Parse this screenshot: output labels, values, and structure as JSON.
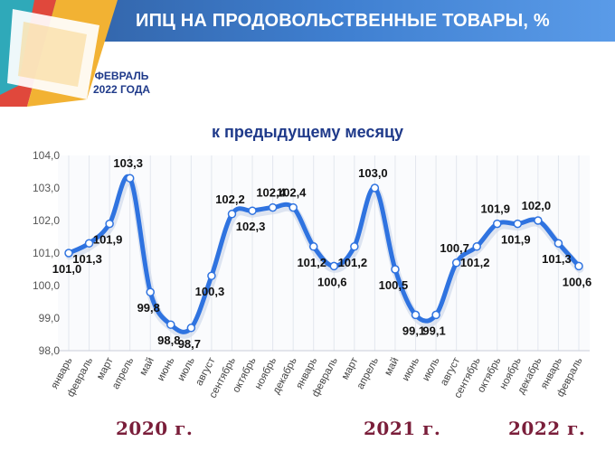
{
  "header": {
    "title": "ИПЦ НА ПРОДОВОЛЬСТВЕННЫЕ ТОВАРЫ, %"
  },
  "subtitle": {
    "line1": "ФЕВРАЛЬ",
    "line2": "2022 ГОДА"
  },
  "years": [
    "2020 г.",
    "2021 г.",
    "2022 г."
  ],
  "colors": {
    "line": "#2f73e0",
    "header": "#3a6fc0",
    "year": "#7a1e3a",
    "subtitle": "#1f3a8a"
  },
  "chart_data": {
    "type": "line",
    "title": "к предыдущему месяцу",
    "categories": [
      "январь",
      "февраль",
      "март",
      "апрель",
      "май",
      "июнь",
      "июль",
      "август",
      "сентябрь",
      "октябрь",
      "ноябрь",
      "декабрь",
      "январь",
      "февраль",
      "март",
      "апрель",
      "май",
      "июнь",
      "июль",
      "август",
      "сентябрь",
      "октябрь",
      "ноябрь",
      "декабрь",
      "январь",
      "февраль"
    ],
    "values": [
      101.0,
      101.3,
      101.9,
      103.3,
      99.8,
      98.8,
      98.7,
      100.3,
      102.2,
      102.3,
      102.4,
      102.4,
      101.2,
      100.6,
      101.2,
      103.0,
      100.5,
      99.1,
      99.1,
      100.7,
      101.2,
      101.9,
      101.9,
      102.0,
      101.3,
      100.6
    ],
    "labels": [
      "101,0",
      "101,3",
      "101,9",
      "103,3",
      "99,8",
      "98,8",
      "98,7",
      "100,3",
      "102,2",
      "102,3",
      "102,4",
      "102,4",
      "101,2",
      "100,6",
      "101,2",
      "103,0",
      "100,5",
      "99,1",
      "99,1",
      "100,7",
      "101,2",
      "101,9",
      "101,9",
      "102,0",
      "101,3",
      "100,6"
    ],
    "y_ticks": [
      "98,0",
      "99,0",
      "100,0",
      "101,0",
      "102,0",
      "103,0",
      "104,0"
    ],
    "ylim": [
      98.0,
      104.0
    ],
    "grid": "vertical",
    "legend": "none"
  }
}
